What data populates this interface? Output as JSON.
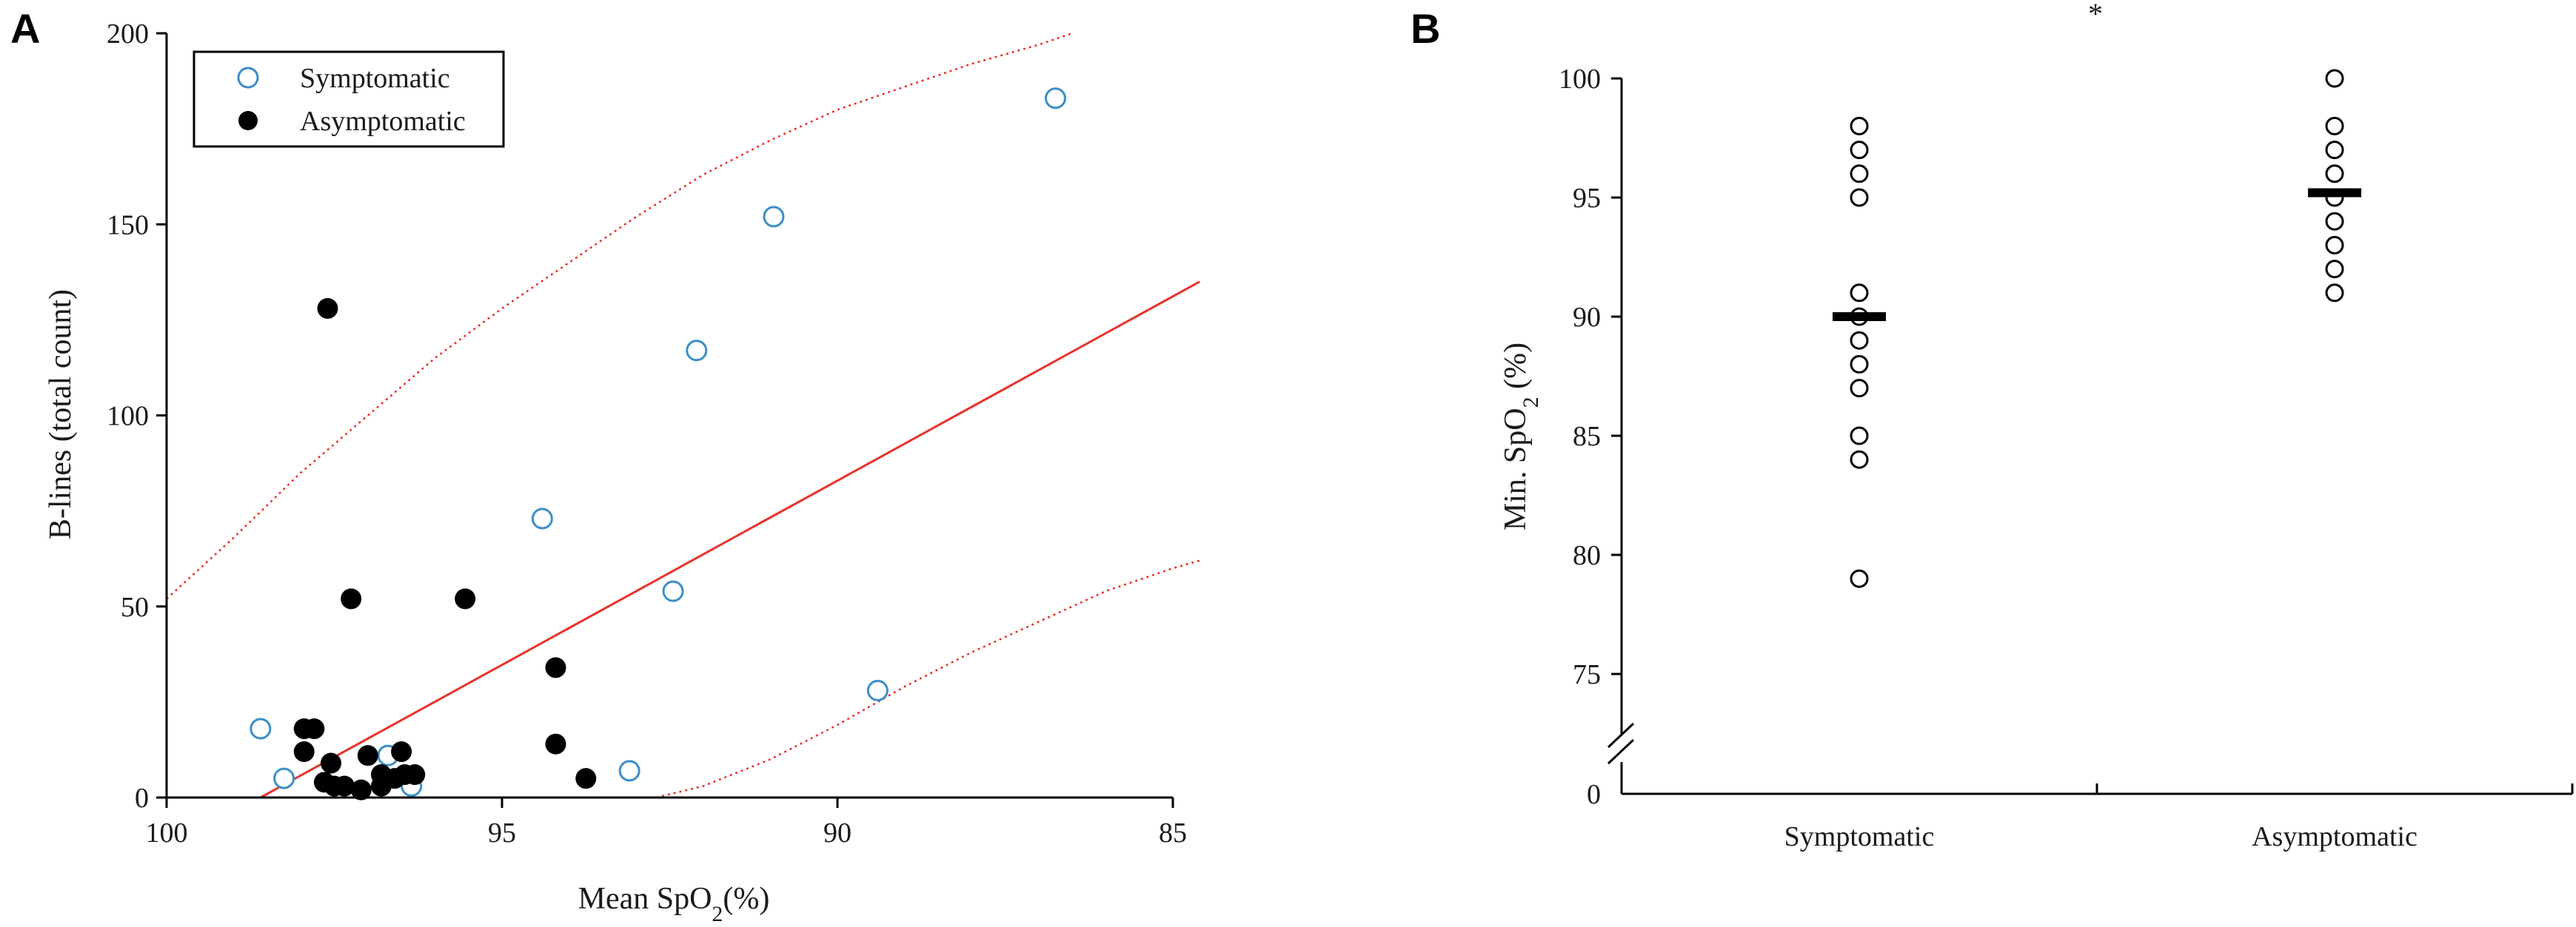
{
  "chart_data": [
    {
      "type": "scatter",
      "panel_label": "A",
      "xlabel": "Mean SpO",
      "xlabel_sub": "2",
      "xlabel_suffix": "(%)",
      "ylabel": "B-lines (total count)",
      "xlim": [
        100,
        85
      ],
      "ylim": [
        0,
        200
      ],
      "x_reversed": true,
      "xticks": [
        100,
        95,
        90,
        85
      ],
      "yticks": [
        0,
        50,
        100,
        150,
        200
      ],
      "grid": false,
      "legend_position": "top-left",
      "series": [
        {
          "name": "Symptomatic",
          "marker": "open-circle",
          "color": "#3a8fc7",
          "points": [
            [
              98.6,
              18
            ],
            [
              98.25,
              5
            ],
            [
              96.7,
              11
            ],
            [
              96.35,
              3
            ],
            [
              94.4,
              73
            ],
            [
              93.1,
              7
            ],
            [
              92.45,
              54
            ],
            [
              92.1,
              117
            ],
            [
              90.95,
              152
            ],
            [
              89.4,
              28
            ],
            [
              86.75,
              183
            ]
          ]
        },
        {
          "name": "Asymptomatic",
          "marker": "filled-circle",
          "color": "#000000",
          "points": [
            [
              97.6,
              128
            ],
            [
              97.95,
              18
            ],
            [
              97.8,
              18
            ],
            [
              97.95,
              12
            ],
            [
              97.55,
              9
            ],
            [
              97.65,
              4
            ],
            [
              97.5,
              3
            ],
            [
              97.35,
              3
            ],
            [
              97.25,
              52
            ],
            [
              97.1,
              2
            ],
            [
              97.0,
              11
            ],
            [
              96.8,
              6
            ],
            [
              96.8,
              3
            ],
            [
              96.6,
              5
            ],
            [
              96.5,
              12
            ],
            [
              96.45,
              6
            ],
            [
              96.3,
              6
            ],
            [
              95.55,
              52
            ],
            [
              94.2,
              34
            ],
            [
              94.2,
              14
            ],
            [
              93.75,
              5
            ]
          ]
        }
      ],
      "regression": {
        "color": "#e8322b",
        "line": [
          [
            98.6,
            0
          ],
          [
            84.6,
            135
          ]
        ],
        "upper_band": [
          [
            100,
            52
          ],
          [
            99,
            68
          ],
          [
            98,
            85
          ],
          [
            97,
            100
          ],
          [
            96,
            115
          ],
          [
            95,
            128
          ],
          [
            94,
            140
          ],
          [
            93,
            152
          ],
          [
            92,
            163
          ],
          [
            91,
            172
          ],
          [
            90,
            180
          ],
          [
            89,
            186
          ],
          [
            88,
            192
          ],
          [
            87,
            197
          ],
          [
            86.5,
            200
          ]
        ],
        "lower_band": [
          [
            92.7,
            0
          ],
          [
            92,
            3
          ],
          [
            91,
            10
          ],
          [
            90,
            19
          ],
          [
            89,
            29
          ],
          [
            88,
            38
          ],
          [
            87,
            46
          ],
          [
            86,
            54
          ],
          [
            85,
            60
          ],
          [
            84.6,
            62
          ]
        ]
      }
    },
    {
      "type": "scatter",
      "panel_label": "B",
      "ylabel": "Min. SpO",
      "ylabel_sub": "2",
      "ylabel_suffix": " (%)",
      "categories": [
        "Symptomatic",
        "Asymptomatic"
      ],
      "yticks": [
        0,
        75,
        80,
        85,
        90,
        95,
        100
      ],
      "ylim_visible": [
        75,
        100
      ],
      "axis_break": true,
      "grid": false,
      "significance": "*",
      "marker": "open-circle",
      "series": [
        {
          "category": "Symptomatic",
          "values": [
            98,
            97,
            96,
            95,
            91,
            90,
            89,
            88,
            87,
            85,
            84,
            79
          ],
          "median": 90
        },
        {
          "category": "Asymptomatic",
          "values": [
            100,
            98,
            97,
            96,
            95,
            94,
            93,
            92,
            91
          ],
          "median": 95.2
        }
      ]
    }
  ]
}
